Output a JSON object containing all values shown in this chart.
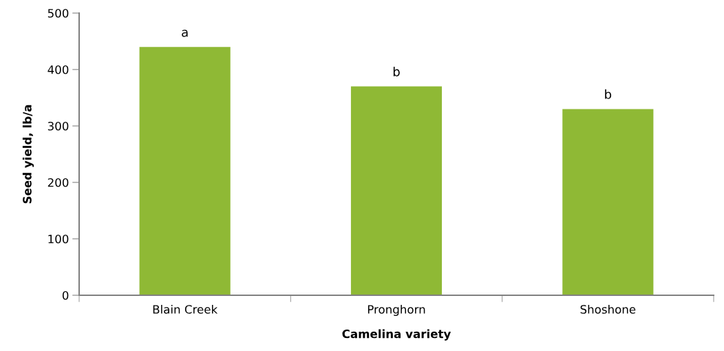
{
  "chart_data": {
    "type": "bar",
    "xlabel": "Camelina variety",
    "ylabel": "Seed yield, lb/a",
    "categories": [
      "Blain Creek",
      "Pronghorn",
      "Shoshone"
    ],
    "values": [
      440,
      370,
      330
    ],
    "color": "#8fb935",
    "ylim": [
      0,
      500
    ],
    "yticks": [
      0,
      100,
      200,
      300,
      400,
      500
    ],
    "grid": false,
    "legend": false,
    "annotations": [
      {
        "text": "a",
        "x": "Blain Creek",
        "y": 440
      },
      {
        "text": "b",
        "x": "Pronghorn",
        "y": 370
      },
      {
        "text": "b",
        "x": "Shoshone",
        "y": 330
      }
    ]
  }
}
